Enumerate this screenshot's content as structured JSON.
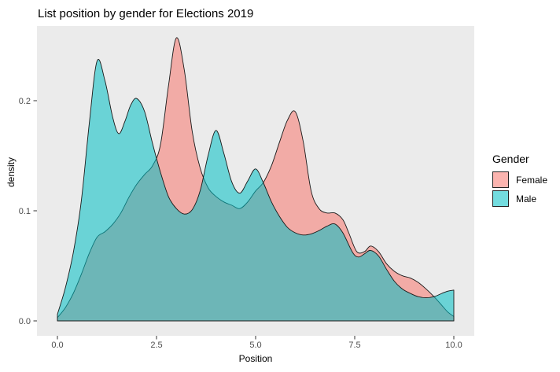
{
  "title": "List position by gender for Elections 2019",
  "legend": {
    "title": "Gender",
    "items": [
      {
        "label": "Female",
        "color": "#F8766D"
      },
      {
        "label": "Male",
        "color": "#00BFC4"
      }
    ]
  },
  "chart_data": {
    "type": "area",
    "subtype": "overlaid-density",
    "title": "List position by gender for Elections 2019",
    "xlabel": "Position",
    "ylabel": "density",
    "xlim": [
      0,
      10
    ],
    "ylim": [
      0,
      0.26
    ],
    "grid": false,
    "legend_position": "right",
    "panel_color": "#EBEBEB",
    "outline_color": "#1A1A1A",
    "tick_label_color": "#4D4D4D",
    "fill_alpha": 0.55,
    "x_ticks": {
      "values": [
        0,
        2.5,
        5,
        7.5,
        10
      ],
      "labels": [
        "0.0",
        "2.5",
        "5.0",
        "7.5",
        "10.0"
      ]
    },
    "y_ticks": {
      "values": [
        0,
        0.1,
        0.2
      ],
      "labels": [
        "0.0",
        "0.1",
        "0.2"
      ]
    },
    "series": [
      {
        "name": "Female",
        "color": "#F8766D",
        "points": [
          [
            0,
            0.003
          ],
          [
            0.2,
            0.012
          ],
          [
            0.4,
            0.025
          ],
          [
            0.6,
            0.042
          ],
          [
            0.8,
            0.061
          ],
          [
            1.0,
            0.076
          ],
          [
            1.2,
            0.081
          ],
          [
            1.4,
            0.088
          ],
          [
            1.6,
            0.098
          ],
          [
            1.8,
            0.112
          ],
          [
            2.0,
            0.124
          ],
          [
            2.2,
            0.133
          ],
          [
            2.4,
            0.141
          ],
          [
            2.6,
            0.16
          ],
          [
            2.8,
            0.213
          ],
          [
            3.0,
            0.257
          ],
          [
            3.2,
            0.228
          ],
          [
            3.4,
            0.172
          ],
          [
            3.6,
            0.139
          ],
          [
            3.8,
            0.121
          ],
          [
            4.0,
            0.113
          ],
          [
            4.2,
            0.108
          ],
          [
            4.4,
            0.105
          ],
          [
            4.6,
            0.102
          ],
          [
            4.8,
            0.108
          ],
          [
            5.0,
            0.118
          ],
          [
            5.2,
            0.126
          ],
          [
            5.4,
            0.141
          ],
          [
            5.6,
            0.162
          ],
          [
            5.8,
            0.182
          ],
          [
            6.0,
            0.19
          ],
          [
            6.2,
            0.163
          ],
          [
            6.4,
            0.118
          ],
          [
            6.6,
            0.102
          ],
          [
            6.8,
            0.098
          ],
          [
            7.0,
            0.098
          ],
          [
            7.2,
            0.092
          ],
          [
            7.35,
            0.08
          ],
          [
            7.55,
            0.063
          ],
          [
            7.75,
            0.063
          ],
          [
            7.9,
            0.068
          ],
          [
            8.1,
            0.063
          ],
          [
            8.3,
            0.052
          ],
          [
            8.5,
            0.045
          ],
          [
            8.7,
            0.041
          ],
          [
            8.9,
            0.039
          ],
          [
            9.1,
            0.035
          ],
          [
            9.3,
            0.029
          ],
          [
            9.5,
            0.022
          ],
          [
            9.7,
            0.014
          ],
          [
            9.85,
            0.008
          ],
          [
            10,
            0.004
          ]
        ]
      },
      {
        "name": "Male",
        "color": "#00BFC4",
        "points": [
          [
            0,
            0.006
          ],
          [
            0.2,
            0.03
          ],
          [
            0.4,
            0.062
          ],
          [
            0.6,
            0.108
          ],
          [
            0.8,
            0.178
          ],
          [
            1.0,
            0.236
          ],
          [
            1.2,
            0.218
          ],
          [
            1.4,
            0.184
          ],
          [
            1.55,
            0.17
          ],
          [
            1.7,
            0.181
          ],
          [
            1.85,
            0.196
          ],
          [
            2.0,
            0.202
          ],
          [
            2.2,
            0.19
          ],
          [
            2.4,
            0.161
          ],
          [
            2.6,
            0.135
          ],
          [
            2.8,
            0.113
          ],
          [
            3.0,
            0.102
          ],
          [
            3.2,
            0.097
          ],
          [
            3.4,
            0.101
          ],
          [
            3.6,
            0.118
          ],
          [
            3.8,
            0.15
          ],
          [
            4.0,
            0.173
          ],
          [
            4.2,
            0.152
          ],
          [
            4.4,
            0.126
          ],
          [
            4.6,
            0.116
          ],
          [
            4.8,
            0.127
          ],
          [
            5.0,
            0.138
          ],
          [
            5.2,
            0.125
          ],
          [
            5.4,
            0.108
          ],
          [
            5.6,
            0.095
          ],
          [
            5.8,
            0.085
          ],
          [
            6.0,
            0.08
          ],
          [
            6.2,
            0.078
          ],
          [
            6.4,
            0.079
          ],
          [
            6.6,
            0.082
          ],
          [
            6.8,
            0.086
          ],
          [
            7.0,
            0.088
          ],
          [
            7.2,
            0.08
          ],
          [
            7.45,
            0.062
          ],
          [
            7.6,
            0.058
          ],
          [
            7.75,
            0.061
          ],
          [
            7.9,
            0.064
          ],
          [
            8.1,
            0.059
          ],
          [
            8.3,
            0.047
          ],
          [
            8.5,
            0.036
          ],
          [
            8.7,
            0.029
          ],
          [
            8.9,
            0.025
          ],
          [
            9.1,
            0.022
          ],
          [
            9.3,
            0.021
          ],
          [
            9.5,
            0.022
          ],
          [
            9.7,
            0.025
          ],
          [
            9.85,
            0.027
          ],
          [
            10,
            0.028
          ]
        ]
      }
    ]
  }
}
